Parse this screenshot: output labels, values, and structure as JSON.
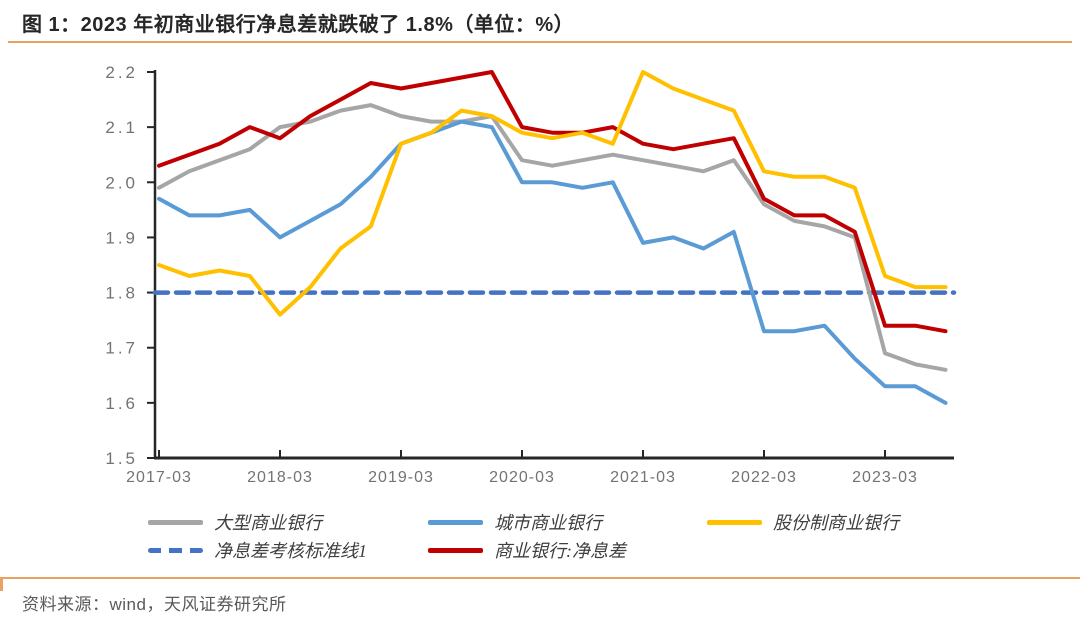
{
  "title": "图 1：2023 年初商业银行净息差就跌破了 1.8%（单位：%）",
  "source": "资料来源：wind，天风证券研究所",
  "accent_rule_color": "#E8A361",
  "axis_color": "#262626",
  "tick_label_color": "#737373",
  "chart_data": {
    "type": "line",
    "title": "2023 年初商业银行净息差就跌破了 1.8%",
    "unit": "%",
    "grid": false,
    "legend_position": "bottom",
    "ylim": [
      1.5,
      2.2
    ],
    "y_ticks": [
      2.2,
      2.1,
      2.0,
      1.9,
      1.8,
      1.7,
      1.6,
      1.5
    ],
    "x": [
      "2017-03",
      "2017-06",
      "2017-09",
      "2017-12",
      "2018-03",
      "2018-06",
      "2018-09",
      "2018-12",
      "2019-03",
      "2019-06",
      "2019-09",
      "2019-12",
      "2020-03",
      "2020-06",
      "2020-09",
      "2020-12",
      "2021-03",
      "2021-06",
      "2021-09",
      "2021-12",
      "2022-03",
      "2022-06",
      "2022-09",
      "2022-12",
      "2023-03",
      "2023-06",
      "2023-09"
    ],
    "x_tick_labels": [
      "2017-03",
      "2018-03",
      "2019-03",
      "2020-03",
      "2021-03",
      "2022-03",
      "2023-03"
    ],
    "series": [
      {
        "name": "大型商业银行",
        "color": "#A6A6A6",
        "style": "solid",
        "values": [
          1.99,
          2.02,
          2.04,
          2.06,
          2.1,
          2.11,
          2.13,
          2.14,
          2.12,
          2.11,
          2.11,
          2.12,
          2.04,
          2.03,
          2.04,
          2.05,
          2.04,
          2.03,
          2.02,
          2.04,
          1.96,
          1.93,
          1.92,
          1.9,
          1.69,
          1.67,
          1.66
        ]
      },
      {
        "name": "城市商业银行",
        "color": "#5B9BD5",
        "style": "solid",
        "values": [
          1.97,
          1.94,
          1.94,
          1.95,
          1.9,
          1.93,
          1.96,
          2.01,
          2.07,
          2.09,
          2.11,
          2.1,
          2.0,
          2.0,
          1.99,
          2.0,
          1.89,
          1.9,
          1.88,
          1.91,
          1.73,
          1.73,
          1.74,
          1.68,
          1.63,
          1.63,
          1.6
        ]
      },
      {
        "name": "股份制商业银行",
        "color": "#FFC000",
        "style": "solid",
        "values": [
          1.85,
          1.83,
          1.84,
          1.83,
          1.76,
          1.81,
          1.88,
          1.92,
          2.07,
          2.09,
          2.13,
          2.12,
          2.09,
          2.08,
          2.09,
          2.07,
          2.2,
          2.17,
          2.15,
          2.13,
          2.02,
          2.01,
          2.01,
          1.99,
          1.83,
          1.81,
          1.81
        ]
      },
      {
        "name": "净息差考核标准线1",
        "color": "#4472C4",
        "style": "dashed",
        "value": 1.8
      },
      {
        "name": "商业银行:净息差",
        "color": "#C00000",
        "style": "solid",
        "values": [
          2.03,
          2.05,
          2.07,
          2.1,
          2.08,
          2.12,
          2.15,
          2.18,
          2.17,
          2.18,
          2.19,
          2.2,
          2.1,
          2.09,
          2.09,
          2.1,
          2.07,
          2.06,
          2.07,
          2.08,
          1.97,
          1.94,
          1.94,
          1.91,
          1.74,
          1.74,
          1.73
        ]
      }
    ]
  }
}
